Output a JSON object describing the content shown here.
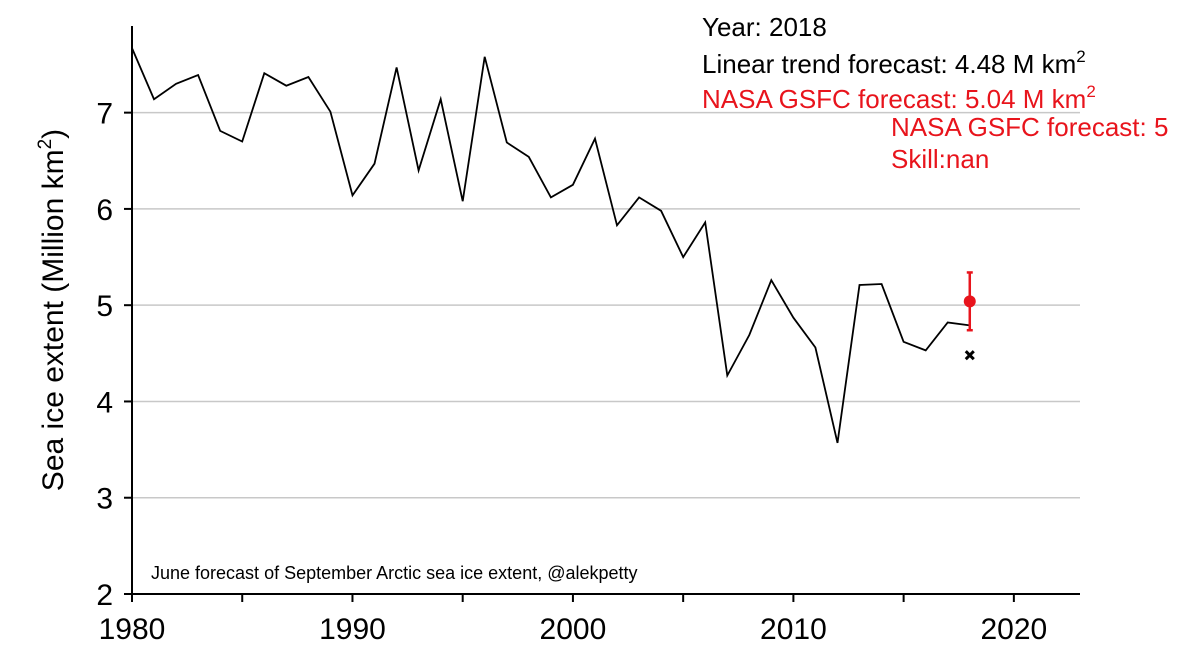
{
  "chart_data": {
    "type": "line",
    "ylabel": "Sea ice extent (Million km",
    "ylabel_sup": "2",
    "ylabel_close": ")",
    "xlim": [
      1980,
      2023
    ],
    "ylim": [
      2,
      7.9
    ],
    "xticks": [
      1980,
      1990,
      2000,
      2010,
      2020
    ],
    "xtick_minor": [
      1985,
      1995,
      2005,
      2015
    ],
    "yticks": [
      2,
      3,
      4,
      5,
      6,
      7
    ],
    "grid": "horizontal",
    "series": [
      {
        "color": "#000000",
        "x": [
          1980,
          1981,
          1982,
          1983,
          1984,
          1985,
          1986,
          1987,
          1988,
          1989,
          1990,
          1991,
          1992,
          1993,
          1994,
          1995,
          1996,
          1997,
          1998,
          1999,
          2000,
          2001,
          2002,
          2003,
          2004,
          2005,
          2006,
          2007,
          2008,
          2009,
          2010,
          2011,
          2012,
          2013,
          2014,
          2015,
          2016,
          2017,
          2018
        ],
        "y": [
          7.67,
          7.14,
          7.3,
          7.39,
          6.81,
          6.7,
          7.41,
          7.28,
          7.37,
          7.01,
          6.14,
          6.47,
          7.47,
          6.4,
          7.14,
          6.08,
          7.58,
          6.69,
          6.54,
          6.12,
          6.25,
          6.73,
          5.83,
          6.12,
          5.98,
          5.5,
          5.86,
          4.27,
          4.69,
          5.26,
          4.87,
          4.56,
          3.57,
          5.21,
          5.22,
          4.62,
          4.53,
          4.82,
          4.79
        ]
      }
    ],
    "linear_forecast": {
      "x": 2018,
      "y": 4.48,
      "color": "#000000",
      "marker": "x"
    },
    "nasa_forecast": {
      "x": 2018,
      "y": 5.04,
      "err_low": 4.74,
      "err_high": 5.34,
      "color": "#e8141c"
    },
    "annotations": {
      "year": "Year: 2018",
      "linear": "Linear trend forecast: 4.48 M km",
      "nasa": "NASA GSFC forecast: 5.04 M km",
      "unit_sup": "2",
      "nasa_overlap": "NASA GSFC forecast: 5",
      "skill": "Skill:nan"
    },
    "credit": "June forecast of September Arctic sea ice extent, @alekpetty"
  }
}
